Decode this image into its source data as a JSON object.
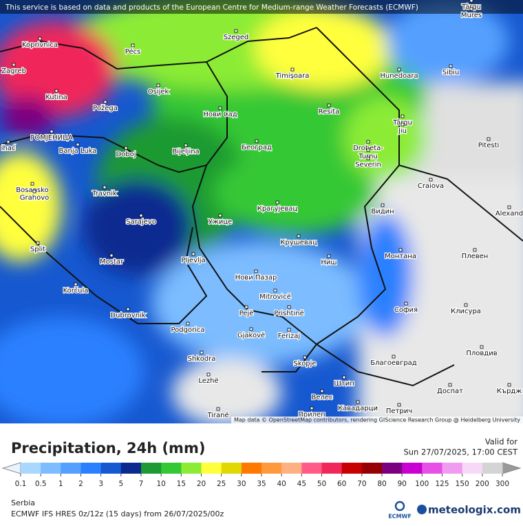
{
  "notice": "This service is based on data and products of the European Centre for Medium-range Weather Forecasts (ECMWF)",
  "cities": [
    "Târgu",
    "Mures",
    "Koprivnica",
    "Pécs",
    "Szeged",
    "Zagreb",
    "Sibiu",
    "Timișoara",
    "Hunedoara",
    "Osijek",
    "Kutina",
    "Požega",
    "Нови Сад",
    "Resita",
    "Târgu",
    "Jiu",
    "ГОМЈЕНИЦА",
    "Banja Luka",
    "Doboj",
    "Bijeljina",
    "Београд",
    "Drobeta-",
    "Turnu",
    "Severin",
    "Pitesti",
    "ihać",
    "Bosansko",
    "Grahovo",
    "Travnik",
    "Craiova",
    "Видин",
    "Крагујевац",
    "Alexand",
    "Sarajevo",
    "Ужице",
    "Крушевац",
    "Split",
    "Mostar",
    "Pljevlja",
    "Ниш",
    "Монтана",
    "Плевен",
    "Нови Пазар",
    "Korčula",
    "Mitrovicë",
    "София",
    "Клисура",
    "Dubrovnik",
    "Pejë",
    "Prishtinë",
    "Podgorica",
    "Gjakovë",
    "Ferizaj",
    "Благоевград",
    "Пловдив",
    "Shkodra",
    "Skopje",
    "Lezhë",
    "Штип",
    "Велес",
    "Кавадарци",
    "Доспат",
    "Кърдж",
    "Tiranë",
    "Прилеп",
    "Петрич"
  ],
  "attribution": "Map data © OpenStreetMap contributors, rendering GIScience Research Group @ Heidelberg University",
  "title": "Precipitation, 24h (mm)",
  "valid_label": "Valid for",
  "valid_time": "Sun 27/07/2025, 17:00 CEST",
  "legend": {
    "ticks": [
      0.1,
      0.5,
      1,
      2,
      3,
      5,
      7,
      10,
      15,
      20,
      25,
      30,
      35,
      40,
      45,
      50,
      60,
      70,
      80,
      90,
      100,
      125,
      150,
      200,
      300
    ],
    "colors": [
      "#a8d8ff",
      "#7cbcff",
      "#55a0ff",
      "#2a80ff",
      "#1658d0",
      "#0a2a90",
      "#1e9a32",
      "#34c834",
      "#8cec34",
      "#ffff3c",
      "#e0d800",
      "#ff7800",
      "#ff9a3c",
      "#ffb082",
      "#ff5a88",
      "#f0285a",
      "#c80000",
      "#960000",
      "#7a0080",
      "#c800d2",
      "#e650e6",
      "#f09af0",
      "#f8d8f8",
      "#d4d4d4"
    ],
    "low_color": "#e8f4ff",
    "high_color": "#999999"
  },
  "region": "Serbia",
  "model": "ECMWF IFS HRES 0z/12z (15 days) from 26/07/2025/00z",
  "ecmwf_logo": "ECMWF",
  "brand": "meteologix.com"
}
